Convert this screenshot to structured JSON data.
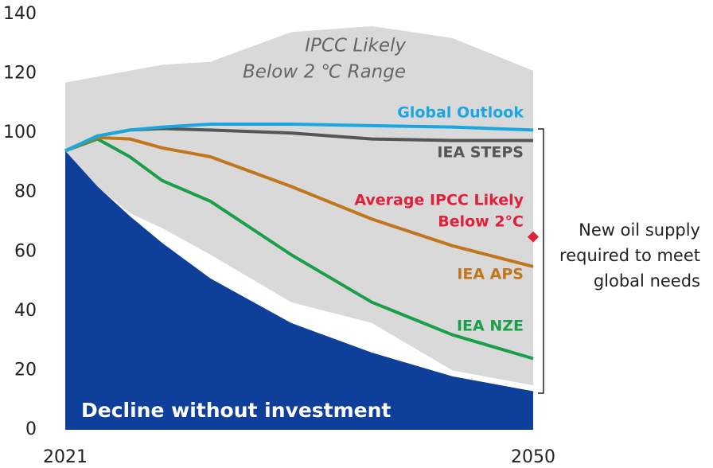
{
  "chart_data": {
    "type": "line",
    "x": [
      2021,
      2023,
      2025,
      2027,
      2030,
      2035,
      2040,
      2045,
      2050
    ],
    "xlim": [
      2021,
      2050
    ],
    "xticks": [
      2021,
      2050
    ],
    "ylim": [
      0,
      140
    ],
    "yticks": [
      0,
      20,
      40,
      60,
      80,
      100,
      120,
      140
    ],
    "series": [
      {
        "name": [
          "IPCC Likely",
          "Below 2 ℃ Range"
        ],
        "kind": "band",
        "color": "#d9d9d9",
        "upper": [
          117,
          119,
          121,
          123,
          124,
          134,
          136,
          132,
          121
        ],
        "lower": [
          94,
          82,
          73,
          68,
          59,
          43,
          36,
          20,
          15
        ]
      },
      {
        "name": "Decline without investment",
        "kind": "area",
        "color": "#0e3f9a",
        "values": [
          94,
          82,
          72,
          63,
          51,
          36,
          26,
          18,
          13
        ]
      },
      {
        "name": "IEA NZE",
        "kind": "line",
        "color": "#1a9e4a",
        "values": [
          94,
          98,
          92,
          84,
          77,
          59,
          43,
          32,
          24
        ]
      },
      {
        "name": "IEA APS",
        "kind": "line",
        "color": "#c0761a",
        "values": [
          94,
          98.5,
          98,
          95,
          92,
          82,
          71,
          62,
          55
        ]
      },
      {
        "name": "IEA STEPS",
        "kind": "line",
        "color": "#555555",
        "values": [
          94,
          99,
          101,
          101.5,
          101,
          100,
          98,
          97.5,
          97.5
        ]
      },
      {
        "name": "Global Outlook",
        "kind": "line",
        "color": "#1aa7e0",
        "values": [
          94,
          99,
          101,
          102,
          103,
          103,
          102.5,
          102,
          101
        ]
      },
      {
        "name": [
          "Average IPCC Likely",
          "Below 2°C"
        ],
        "kind": "point",
        "color": "#e0203a",
        "x": 2050,
        "value": 65
      }
    ],
    "annotation": [
      "New oil supply",
      "required to meet",
      "global needs"
    ]
  }
}
